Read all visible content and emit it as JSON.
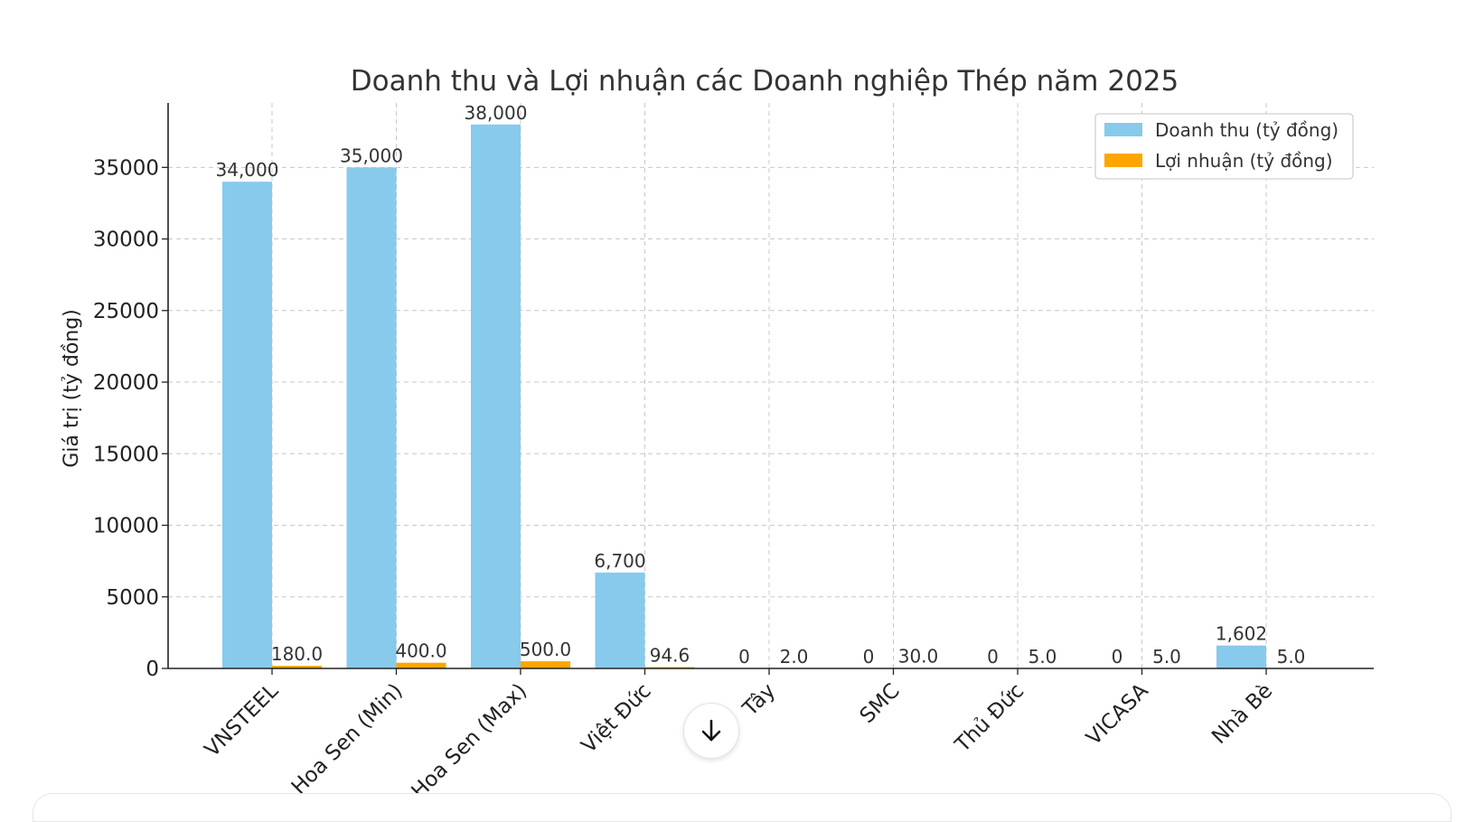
{
  "chart_data": {
    "type": "bar",
    "title": "Doanh thu và Lợi nhuận các Doanh nghiệp Thép năm 2025",
    "xlabel": "",
    "ylabel": "Giá trị (tỷ đồng)",
    "ylim": [
      0,
      39500
    ],
    "yticks": [
      0,
      5000,
      10000,
      15000,
      20000,
      25000,
      30000,
      35000
    ],
    "ytick_labels": [
      "0",
      "5000",
      "10000",
      "15000",
      "20000",
      "25000",
      "30000",
      "35000"
    ],
    "categories": [
      "VNSTEEL",
      "Hoa Sen (Min)",
      "Hoa Sen (Max)",
      "Việt Đức",
      "Tây",
      "SMC",
      "Thủ Đức",
      "VICASA",
      "Nhà Bè"
    ],
    "grid": true,
    "legend_position": "top-right",
    "series": [
      {
        "name": "Doanh thu (tỷ đồng)",
        "color": "#87CAEC",
        "values": [
          34000,
          35000,
          38000,
          6700,
          0,
          0,
          0,
          0,
          1602
        ],
        "labels": [
          "34,000",
          "35,000",
          "38,000",
          "6,700",
          "0",
          "0",
          "0",
          "0",
          "1,602"
        ]
      },
      {
        "name": "Lợi nhuận (tỷ đồng)",
        "color": "#FFA500",
        "values": [
          180.0,
          400.0,
          500.0,
          94.6,
          2.0,
          30.0,
          5.0,
          5.0,
          5.0
        ],
        "labels": [
          "180.0",
          "400.0",
          "500.0",
          "94.6",
          "2.0",
          "30.0",
          "5.0",
          "5.0",
          "5.0"
        ]
      }
    ]
  },
  "scroll_button": {
    "icon": "arrow-down-icon"
  }
}
